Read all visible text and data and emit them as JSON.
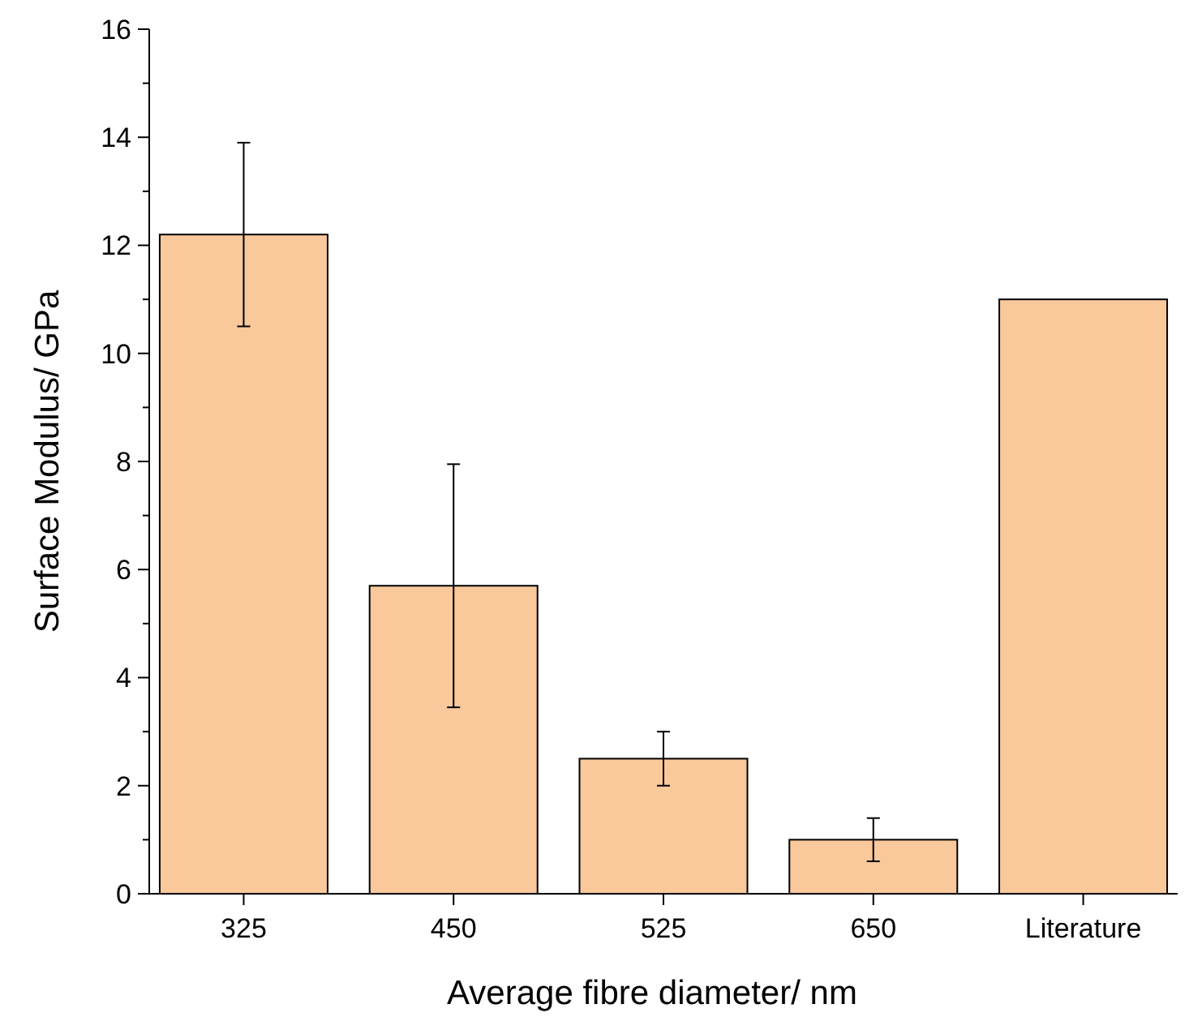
{
  "chart_data": {
    "type": "bar",
    "xlabel": "Average fibre diameter/ nm",
    "ylabel": "Surface Modulus/ GPa",
    "categories": [
      "325",
      "450",
      "525",
      "650",
      "Literature"
    ],
    "values": [
      12.2,
      5.7,
      2.5,
      1.0,
      11
    ],
    "errors": [
      [
        10.5,
        13.9
      ],
      [
        3.45,
        7.95
      ],
      [
        2.0,
        3.0
      ],
      [
        0.6,
        1.4
      ],
      null
    ],
    "color": "#f9c89b",
    "ylim": [
      0,
      16
    ],
    "yticks": [
      0,
      {
        "value": 1,
        "label": null
      },
      2,
      {
        "value": 3,
        "label": null
      },
      4,
      {
        "value": 5,
        "label": null
      },
      6,
      {
        "value": 7,
        "label": null
      },
      8,
      {
        "value": 9,
        "label": null
      },
      10,
      {
        "value": 11,
        "label": null
      },
      12,
      {
        "value": 13,
        "label": null
      },
      14,
      {
        "value": 15,
        "label": null
      },
      16
    ],
    "grid": false
  }
}
